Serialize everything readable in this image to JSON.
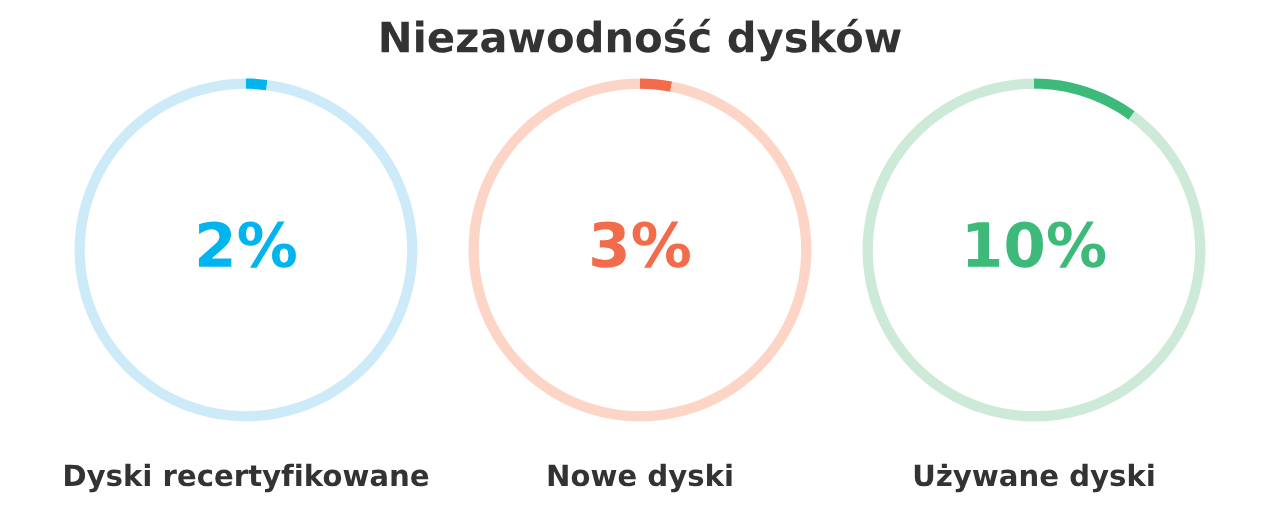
{
  "chart_data": [
    {
      "type": "other",
      "title": "Niezawodność dysków"
    },
    {
      "type": "donut",
      "xlabel": "Dyski recertyfikowane",
      "categories": [
        null,
        null
      ],
      "values": [
        2,
        98
      ],
      "colors": [
        "#00b4f0",
        "#cdeaf8"
      ],
      "value_labels": [
        "2%",
        null
      ]
    },
    {
      "type": "donut",
      "xlabel": "Nowe dyski",
      "categories": [
        null,
        null
      ],
      "values": [
        3,
        97
      ],
      "colors": [
        "#f26b4b",
        "#fdd5c6"
      ],
      "value_labels": [
        "3%",
        null
      ]
    },
    {
      "type": "donut",
      "xlabel": "Używane dyski",
      "categories": [
        null,
        null
      ],
      "values": [
        10,
        90
      ],
      "colors": [
        "#3dba7a",
        "#cde9d7"
      ],
      "value_labels": [
        "10%",
        null
      ]
    }
  ]
}
